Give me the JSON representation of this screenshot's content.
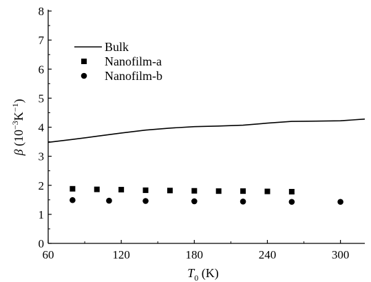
{
  "chart_data": {
    "type": "line",
    "title": "",
    "xlabel": {
      "symbol": "T",
      "subscript": "0",
      "unit": " (K)"
    },
    "ylabel": {
      "symbol": "β",
      "unit_pre": " (10",
      "unit_exp1": "−3",
      "unit_mid": "K",
      "unit_exp2": "−1",
      "unit_post": ")"
    },
    "xlim": [
      60,
      320
    ],
    "ylim": [
      0,
      8
    ],
    "xticks": [
      60,
      120,
      180,
      240,
      300
    ],
    "yticks": [
      0,
      1,
      2,
      3,
      4,
      5,
      6,
      7,
      8
    ],
    "grid": false,
    "legend_position": "top-left",
    "series": [
      {
        "name": "Bulk",
        "style": "line",
        "color": "#000000",
        "x": [
          60,
          80,
          100,
          120,
          140,
          160,
          180,
          200,
          220,
          240,
          260,
          280,
          300,
          320
        ],
        "y": [
          3.48,
          3.58,
          3.69,
          3.8,
          3.9,
          3.97,
          4.02,
          4.04,
          4.07,
          4.14,
          4.2,
          4.21,
          4.22,
          4.28
        ]
      },
      {
        "name": "Nanofilm-a",
        "style": "square",
        "color": "#000000",
        "x": [
          80,
          100,
          120,
          140,
          160,
          180,
          200,
          220,
          240,
          260
        ],
        "y": [
          1.88,
          1.86,
          1.85,
          1.83,
          1.82,
          1.81,
          1.8,
          1.8,
          1.79,
          1.78
        ]
      },
      {
        "name": "Nanofilm-b",
        "style": "circle",
        "color": "#000000",
        "x": [
          80,
          110,
          140,
          180,
          220,
          260,
          300
        ],
        "y": [
          1.49,
          1.47,
          1.46,
          1.45,
          1.44,
          1.43,
          1.43
        ]
      }
    ]
  }
}
